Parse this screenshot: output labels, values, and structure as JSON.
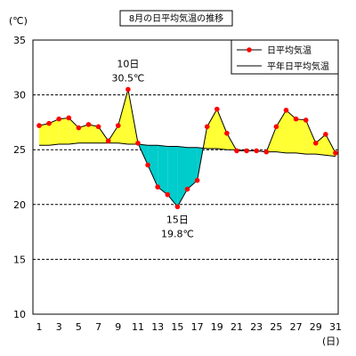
{
  "chart_data": {
    "type": "line",
    "title": "8月の日平均気温の推移",
    "y_unit": "(℃)",
    "x_unit": "(日)",
    "ylim": [
      10,
      35
    ],
    "y_ticks": [
      10,
      15,
      20,
      25,
      30,
      35
    ],
    "grid": "horizontal dashed at 15, 20, 25, 30",
    "legend_position": "top-right",
    "x": [
      1,
      2,
      3,
      4,
      5,
      6,
      7,
      8,
      9,
      10,
      11,
      12,
      13,
      14,
      15,
      16,
      17,
      18,
      19,
      20,
      21,
      22,
      23,
      24,
      25,
      26,
      27,
      28,
      29,
      30,
      31
    ],
    "series": [
      {
        "name": "日平均気温",
        "values": [
          27.2,
          27.4,
          27.8,
          27.9,
          27.0,
          27.3,
          27.1,
          25.8,
          27.2,
          30.5,
          25.6,
          23.6,
          21.6,
          20.9,
          19.8,
          21.4,
          22.2,
          27.1,
          28.7,
          26.5,
          24.9,
          24.9,
          24.9,
          24.8,
          27.1,
          28.6,
          27.8,
          27.7,
          25.6,
          26.4,
          24.7
        ],
        "color": "#ff0000",
        "line_color": "#000000"
      },
      {
        "name": "平年日平均気温",
        "values": [
          25.4,
          25.4,
          25.5,
          25.5,
          25.6,
          25.6,
          25.6,
          25.6,
          25.6,
          25.5,
          25.5,
          25.4,
          25.4,
          25.3,
          25.3,
          25.2,
          25.2,
          25.1,
          25.1,
          25.0,
          25.0,
          24.9,
          24.9,
          24.8,
          24.8,
          24.7,
          24.7,
          24.6,
          24.6,
          24.5,
          24.4
        ],
        "color": "#000000"
      }
    ],
    "fill_above_color": "#ffff33",
    "fill_below_color": "#00cccc",
    "annotations": [
      {
        "x": 10,
        "y": 30.5,
        "day_label": "10日",
        "value_label": "30.5℃",
        "placement": "above"
      },
      {
        "x": 15,
        "y": 19.8,
        "day_label": "15日",
        "value_label": "19.8℃",
        "placement": "below"
      }
    ]
  }
}
